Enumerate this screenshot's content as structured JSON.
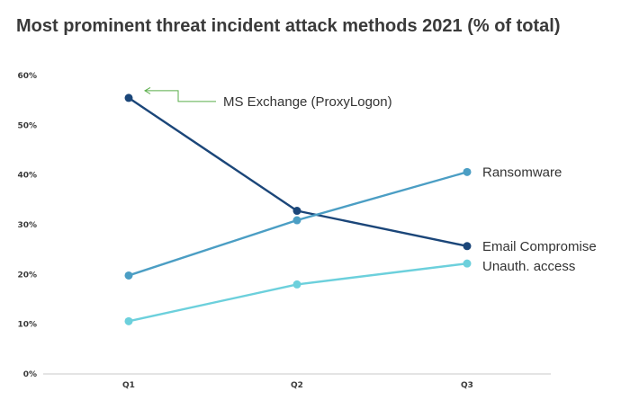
{
  "chart_data": {
    "type": "line",
    "title": "Most prominent threat incident attack methods 2021 (% of total)",
    "xlabel": "",
    "ylabel": "",
    "categories": [
      "Q1",
      "Q2",
      "Q3"
    ],
    "ylim": [
      0,
      60
    ],
    "yticks": [
      "0%",
      "10%",
      "20%",
      "30%",
      "40%",
      "50%",
      "60%"
    ],
    "grid": false,
    "legend": "none",
    "series": [
      {
        "name": "Email Compromise",
        "values": [
          55.5,
          32.8,
          25.7
        ],
        "color": "#1b4679"
      },
      {
        "name": "Ransomware",
        "values": [
          19.8,
          30.9,
          40.6
        ],
        "color": "#4b9ec4"
      },
      {
        "name": "Unauth. access",
        "values": [
          10.6,
          18.0,
          22.2
        ],
        "color": "#6cd0dc"
      }
    ],
    "annotations": [
      {
        "text": "MS Exchange (ProxyLogon)",
        "series": "Email Compromise",
        "point": "Q1",
        "arrow_color": "#5aae4a"
      }
    ]
  }
}
